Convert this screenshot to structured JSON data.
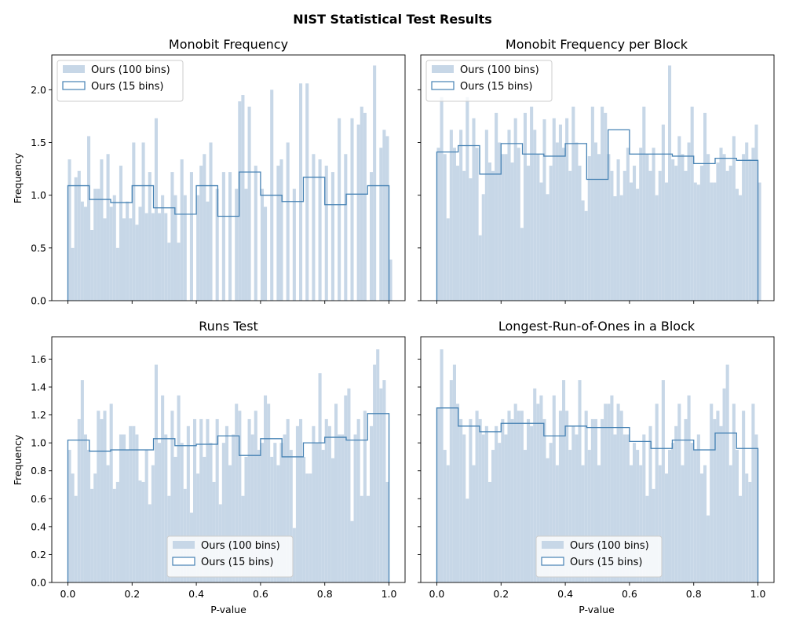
{
  "figure": {
    "title": "NIST Statistical Test Results"
  },
  "colors": {
    "bar_fill": "#c7d7e7",
    "step_line": "#4682b4",
    "axis": "#000000"
  },
  "legend": {
    "hist100_label": "Ours (100 bins)",
    "hist15_label": "Ours (15 bins)"
  },
  "chart_data": [
    {
      "type": "bar",
      "title": "Monobit Frequency",
      "xlabel": "",
      "ylabel": "Frequency",
      "xlim": [
        -0.05,
        1.05
      ],
      "ylim": [
        0,
        2.33
      ],
      "xticks": [
        "0.0",
        "0.2",
        "0.4",
        "0.6",
        "0.8",
        "1.0"
      ],
      "xtick_labels_visible": false,
      "yticks": [
        "0.0",
        "0.5",
        "1.0",
        "1.5",
        "2.0"
      ],
      "ytick_labels_visible": true,
      "legend_position": "upper-left",
      "series": [
        {
          "name": "Ours (100 bins)",
          "bins": 100,
          "range": [
            0,
            1
          ],
          "values": [
            1.34,
            0.5,
            1.17,
            1.23,
            0.94,
            0.89,
            1.56,
            0.67,
            1.06,
            1.06,
            1.34,
            0.78,
            1.39,
            0.89,
            1.0,
            0.5,
            1.28,
            0.78,
            0.94,
            0.78,
            1.5,
            0.72,
            0.89,
            1.5,
            0.83,
            1.22,
            0.83,
            1.73,
            0.83,
            1.0,
            0.83,
            0.55,
            1.22,
            1.0,
            0.55,
            1.34,
            1.0,
            0.0,
            1.22,
            0.0,
            1.0,
            1.28,
            1.39,
            0.94,
            1.5,
            0.0,
            1.06,
            0.0,
            1.22,
            0.0,
            1.22,
            0.0,
            1.06,
            1.89,
            1.95,
            1.06,
            1.84,
            0.0,
            1.28,
            0.0,
            1.06,
            0.89,
            0.0,
            2.0,
            0.0,
            1.28,
            1.34,
            0.0,
            1.5,
            0.0,
            1.06,
            0.0,
            2.06,
            0.0,
            2.06,
            0.0,
            1.39,
            0.0,
            1.34,
            0.0,
            1.28,
            0.0,
            1.22,
            0.0,
            1.73,
            0.0,
            1.39,
            0.0,
            1.73,
            0.0,
            1.67,
            1.84,
            1.78,
            0.0,
            1.22,
            2.23,
            0.0,
            1.45,
            1.62,
            1.56,
            0.39
          ]
        },
        {
          "name": "Ours (15 bins)",
          "bins": 15,
          "range": [
            0,
            1
          ],
          "values": [
            1.09,
            0.96,
            0.93,
            1.09,
            0.88,
            0.82,
            1.09,
            0.8,
            1.22,
            1.0,
            0.94,
            1.17,
            0.91,
            1.01,
            1.09
          ]
        }
      ]
    },
    {
      "type": "bar",
      "title": "Monobit Frequency per Block",
      "xlabel": "",
      "ylabel": "",
      "xlim": [
        -0.05,
        1.05
      ],
      "ylim": [
        0,
        2.33
      ],
      "xticks": [
        "0.0",
        "0.2",
        "0.4",
        "0.6",
        "0.8",
        "1.0"
      ],
      "xtick_labels_visible": false,
      "yticks": [
        "0.0",
        "0.5",
        "1.0",
        "1.5",
        "2.0"
      ],
      "ytick_labels_visible": false,
      "legend_position": "upper-left",
      "series": [
        {
          "name": "Ours (100 bins)",
          "bins": 100,
          "range": [
            0,
            1
          ],
          "values": [
            1.45,
            1.93,
            1.39,
            0.78,
            1.62,
            1.45,
            1.28,
            1.62,
            1.23,
            1.93,
            1.16,
            1.73,
            1.45,
            0.62,
            1.01,
            1.62,
            1.31,
            1.23,
            1.78,
            1.5,
            1.39,
            1.39,
            1.62,
            1.31,
            1.73,
            1.45,
            0.69,
            1.78,
            1.28,
            1.84,
            1.62,
            1.39,
            1.12,
            1.72,
            1.01,
            1.28,
            1.73,
            1.5,
            1.67,
            1.45,
            1.73,
            1.23,
            1.84,
            1.5,
            1.28,
            0.95,
            0.85,
            1.37,
            1.84,
            1.5,
            1.39,
            1.84,
            1.78,
            1.39,
            1.23,
            0.99,
            1.34,
            1.0,
            1.23,
            1.45,
            1.12,
            1.28,
            1.06,
            1.45,
            1.84,
            1.39,
            1.23,
            1.45,
            1.0,
            1.23,
            1.67,
            1.12,
            2.23,
            1.34,
            1.28,
            1.56,
            1.39,
            1.23,
            1.5,
            1.84,
            1.12,
            1.1,
            1.28,
            1.78,
            1.39,
            1.12,
            1.12,
            1.31,
            1.45,
            1.39,
            1.23,
            1.28,
            1.56,
            1.06,
            1.0,
            1.39,
            1.5,
            1.34,
            1.45,
            1.67,
            1.12
          ]
        },
        {
          "name": "Ours (15 bins)",
          "bins": 15,
          "range": [
            0,
            1
          ],
          "values": [
            1.41,
            1.47,
            1.2,
            1.49,
            1.39,
            1.37,
            1.49,
            1.15,
            1.62,
            1.39,
            1.39,
            1.37,
            1.3,
            1.35,
            1.33
          ]
        }
      ]
    },
    {
      "type": "bar",
      "title": "Runs Test",
      "xlabel": "P-value",
      "ylabel": "Frequency",
      "xlim": [
        -0.05,
        1.05
      ],
      "ylim": [
        0,
        1.76
      ],
      "xticks": [
        "0.0",
        "0.2",
        "0.4",
        "0.6",
        "0.8",
        "1.0"
      ],
      "xtick_labels_visible": true,
      "yticks": [
        "0.0",
        "0.2",
        "0.4",
        "0.6",
        "0.8",
        "1.0",
        "1.2",
        "1.4",
        "1.6"
      ],
      "ytick_labels_visible": true,
      "legend_position": "lower-center",
      "series": [
        {
          "name": "Ours (100 bins)",
          "bins": 100,
          "range": [
            0,
            1
          ],
          "values": [
            0.95,
            0.78,
            0.62,
            1.17,
            1.45,
            1.06,
            0.95,
            0.67,
            0.78,
            1.23,
            1.17,
            1.23,
            0.84,
            1.28,
            0.67,
            0.72,
            1.06,
            1.06,
            0.95,
            1.12,
            1.12,
            1.06,
            0.73,
            0.72,
            0.95,
            0.56,
            0.84,
            1.56,
            1.0,
            1.34,
            1.06,
            0.62,
            1.23,
            0.9,
            1.34,
            1.0,
            0.67,
            1.12,
            0.5,
            1.17,
            0.78,
            1.17,
            0.9,
            1.17,
            1.0,
            0.72,
            1.17,
            0.56,
            1.0,
            1.12,
            0.84,
            1.06,
            1.28,
            1.23,
            0.62,
            0.9,
            1.17,
            1.06,
            1.23,
            0.95,
            1.0,
            1.34,
            1.28,
            0.9,
            1.0,
            0.84,
            1.0,
            1.06,
            1.17,
            0.95,
            0.39,
            1.12,
            1.17,
            0.9,
            0.78,
            0.78,
            1.12,
            1.0,
            1.5,
            0.95,
            1.17,
            1.12,
            0.89,
            1.28,
            1.06,
            1.06,
            1.34,
            1.39,
            0.44,
            1.06,
            1.17,
            0.62,
            1.23,
            0.62,
            1.12,
            1.56,
            1.67,
            1.39,
            1.45,
            0.72
          ]
        },
        {
          "name": "Ours (15 bins)",
          "bins": 15,
          "range": [
            0,
            1
          ],
          "values": [
            1.02,
            0.94,
            0.95,
            0.95,
            1.03,
            0.98,
            0.99,
            1.05,
            0.91,
            1.03,
            0.9,
            1.0,
            1.04,
            1.02,
            1.21
          ]
        }
      ]
    },
    {
      "type": "bar",
      "title": "Longest-Run-of-Ones in a Block",
      "xlabel": "P-value",
      "ylabel": "",
      "xlim": [
        -0.05,
        1.05
      ],
      "ylim": [
        0,
        1.76
      ],
      "xticks": [
        "0.0",
        "0.2",
        "0.4",
        "0.6",
        "0.8",
        "1.0"
      ],
      "xtick_labels_visible": true,
      "yticks": [
        "0.0",
        "0.2",
        "0.4",
        "0.6",
        "0.8",
        "1.0",
        "1.2",
        "1.4",
        "1.6"
      ],
      "ytick_labels_visible": false,
      "legend_position": "lower-center",
      "series": [
        {
          "name": "Ours (100 bins)",
          "bins": 100,
          "range": [
            0,
            1
          ],
          "values": [
            1.25,
            1.67,
            0.95,
            0.84,
            1.45,
            1.56,
            1.28,
            1.17,
            1.06,
            0.6,
            1.17,
            0.84,
            1.23,
            1.17,
            1.06,
            1.12,
            0.72,
            0.95,
            1.12,
            1.0,
            1.17,
            1.06,
            1.23,
            1.17,
            1.28,
            1.23,
            1.23,
            0.95,
            1.17,
            1.12,
            1.39,
            1.28,
            1.34,
            1.17,
            0.89,
            1.0,
            1.34,
            0.84,
            1.23,
            1.45,
            1.23,
            0.95,
            1.12,
            1.06,
            1.45,
            0.84,
            1.23,
            0.95,
            1.17,
            1.17,
            0.84,
            1.17,
            1.28,
            1.28,
            1.34,
            1.06,
            1.28,
            1.23,
            1.06,
            1.06,
            0.84,
            1.0,
            0.95,
            0.84,
            1.06,
            0.62,
            1.12,
            0.67,
            1.28,
            0.84,
            1.45,
            0.78,
            0.95,
            1.0,
            1.12,
            1.28,
            0.84,
            1.17,
            1.34,
            1.0,
            0.95,
            1.06,
            0.78,
            0.84,
            0.48,
            1.28,
            1.17,
            1.23,
            1.12,
            1.39,
            1.56,
            0.84,
            1.28,
            0.95,
            0.62,
            1.23,
            0.78,
            0.72,
            1.28,
            1.06
          ]
        },
        {
          "name": "Ours (15 bins)",
          "bins": 15,
          "range": [
            0,
            1
          ],
          "values": [
            1.25,
            1.12,
            1.08,
            1.14,
            1.14,
            1.05,
            1.12,
            1.11,
            1.11,
            1.01,
            0.96,
            1.02,
            0.95,
            1.07,
            0.96
          ]
        }
      ]
    }
  ]
}
